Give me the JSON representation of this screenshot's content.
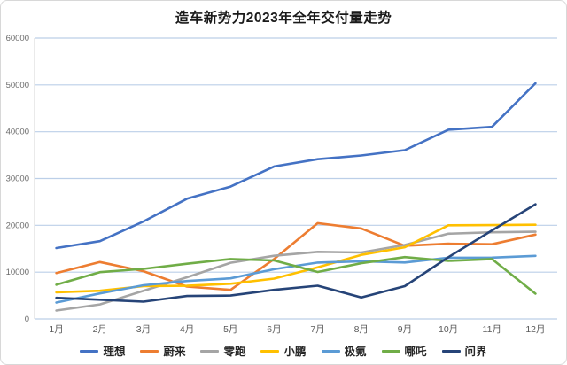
{
  "chart_data": {
    "type": "line",
    "title": "造车新势力2023年全年交付量走势",
    "categories": [
      "1月",
      "2月",
      "3月",
      "4月",
      "5月",
      "6月",
      "7月",
      "8月",
      "9月",
      "10月",
      "11月",
      "12月"
    ],
    "series": [
      {
        "name": "理想",
        "color": "#4472C4",
        "values": [
          15141,
          16620,
          20823,
          25681,
          28277,
          32575,
          34134,
          34914,
          36060,
          40422,
          41030,
          50353
        ]
      },
      {
        "name": "蔚来",
        "color": "#ED7D31",
        "values": [
          9800,
          12157,
          10200,
          6900,
          6200,
          12800,
          20462,
          19329,
          15641,
          16074,
          15959,
          18012
        ]
      },
      {
        "name": "零跑",
        "color": "#A5A5A5",
        "values": [
          1800,
          3100,
          6000,
          8900,
          12000,
          13500,
          14335,
          14190,
          15800,
          18202,
          18508,
          18618
        ]
      },
      {
        "name": "小鹏",
        "color": "#FFC000",
        "values": [
          5700,
          6010,
          7002,
          7079,
          7506,
          8620,
          11008,
          13690,
          15310,
          20002,
          20041,
          20115
        ]
      },
      {
        "name": "极氪",
        "color": "#5B9BD5",
        "values": [
          3500,
          5455,
          7200,
          8101,
          8678,
          10620,
          12039,
          12303,
          12053,
          13077,
          13104,
          13476
        ]
      },
      {
        "name": "哪吒",
        "color": "#70AD47",
        "values": [
          7300,
          10000,
          10700,
          11800,
          12800,
          12500,
          10039,
          11900,
          13211,
          12400,
          12800,
          5400
        ]
      },
      {
        "name": "问界",
        "color": "#264478",
        "values": [
          4500,
          4100,
          3700,
          4900,
          5000,
          6200,
          7100,
          4600,
          7000,
          13200,
          18900,
          24500
        ]
      }
    ],
    "ylim": [
      0,
      60000
    ],
    "ytick_step": 10000,
    "ytick_labels": [
      "0",
      "10000",
      "20000",
      "30000",
      "40000",
      "50000",
      "60000"
    ],
    "xlabel": "",
    "ylabel": "",
    "grid": "horizontal-only",
    "legend_position": "bottom",
    "style": {
      "gridline_color": "#BCCFE8",
      "axis_color": "#D6D6D6",
      "ytick_text_color": "#6B6B6B",
      "xtick_text_color": "#595959",
      "background": "#FFFFFF",
      "border_color": "#D8D8D8",
      "line_width": 2.6
    }
  }
}
